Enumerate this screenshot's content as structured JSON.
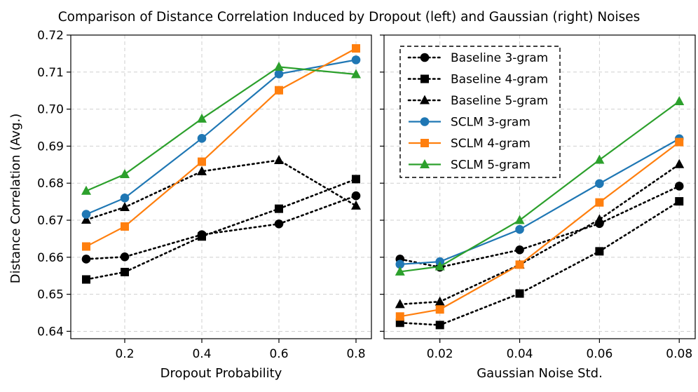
{
  "chart_data": {
    "type": "line",
    "title": "Comparison of Distance Correlation Induced by Dropout (left) and Gaussian (right) Noises",
    "ylabel": "Distance Correlation (Avg.)",
    "ylim": [
      0.638,
      0.72
    ],
    "yticks": [
      0.64,
      0.65,
      0.66,
      0.67,
      0.68,
      0.69,
      0.7,
      0.71,
      0.72
    ],
    "ytick_labels": [
      "0.64",
      "0.65",
      "0.66",
      "0.67",
      "0.68",
      "0.69",
      "0.70",
      "0.71",
      "0.72"
    ],
    "grid": true,
    "legend_position": "upper-left of right panel",
    "legend_style": "dashed frame",
    "series_styles": [
      {
        "name": "Baseline 3-gram",
        "color": "#000000",
        "marker": "circle",
        "line": "dotted"
      },
      {
        "name": "Baseline 4-gram",
        "color": "#000000",
        "marker": "square",
        "line": "dotted"
      },
      {
        "name": "Baseline 5-gram",
        "color": "#000000",
        "marker": "triangle",
        "line": "dotted"
      },
      {
        "name": "SCLM 3-gram",
        "color": "#1f77b4",
        "marker": "circle",
        "line": "solid"
      },
      {
        "name": "SCLM 4-gram",
        "color": "#ff7f0e",
        "marker": "square",
        "line": "solid"
      },
      {
        "name": "SCLM 5-gram",
        "color": "#2ca02c",
        "marker": "triangle",
        "line": "solid"
      }
    ],
    "panels": [
      {
        "xlabel": "Dropout Probability",
        "x": [
          0.1,
          0.2,
          0.4,
          0.6,
          0.8
        ],
        "xlim": [
          0.06,
          0.84
        ],
        "xticks": [
          0.2,
          0.4,
          0.6,
          0.8
        ],
        "xtick_labels": [
          "0.2",
          "0.4",
          "0.6",
          "0.8"
        ],
        "series": [
          {
            "name": "Baseline 3-gram",
            "values": [
              0.6595,
              0.6601,
              0.6661,
              0.669,
              0.6766
            ]
          },
          {
            "name": "Baseline 4-gram",
            "values": [
              0.654,
              0.656,
              0.6656,
              0.6731,
              0.6811
            ]
          },
          {
            "name": "Baseline 5-gram",
            "values": [
              0.6701,
              0.6735,
              0.6832,
              0.6862,
              0.6739
            ]
          },
          {
            "name": "SCLM 3-gram",
            "values": [
              0.6716,
              0.676,
              0.6921,
              0.7095,
              0.7133
            ]
          },
          {
            "name": "SCLM 4-gram",
            "values": [
              0.6629,
              0.6683,
              0.6858,
              0.7051,
              0.7164
            ]
          },
          {
            "name": "SCLM 5-gram",
            "values": [
              0.6779,
              0.6824,
              0.6974,
              0.7114,
              0.7094
            ]
          }
        ]
      },
      {
        "xlabel": "Gaussian Noise Std.",
        "x": [
          0.01,
          0.02,
          0.04,
          0.06,
          0.08
        ],
        "xlim": [
          0.006,
          0.084
        ],
        "xticks": [
          0.02,
          0.04,
          0.06,
          0.08
        ],
        "xtick_labels": [
          "0.02",
          "0.04",
          "0.06",
          "0.08"
        ],
        "series": [
          {
            "name": "Baseline 3-gram",
            "values": [
              0.6595,
              0.6573,
              0.662,
              0.6691,
              0.6792
            ]
          },
          {
            "name": "Baseline 4-gram",
            "values": [
              0.6423,
              0.6417,
              0.6502,
              0.6616,
              0.6751
            ]
          },
          {
            "name": "Baseline 5-gram",
            "values": [
              0.6473,
              0.648,
              0.658,
              0.6702,
              0.6851
            ]
          },
          {
            "name": "SCLM 3-gram",
            "values": [
              0.6581,
              0.6588,
              0.6675,
              0.6799,
              0.692
            ]
          },
          {
            "name": "SCLM 4-gram",
            "values": [
              0.644,
              0.6459,
              0.658,
              0.6748,
              0.6911
            ]
          },
          {
            "name": "SCLM 5-gram",
            "values": [
              0.6561,
              0.6575,
              0.67,
              0.6863,
              0.7021
            ]
          }
        ]
      }
    ]
  }
}
